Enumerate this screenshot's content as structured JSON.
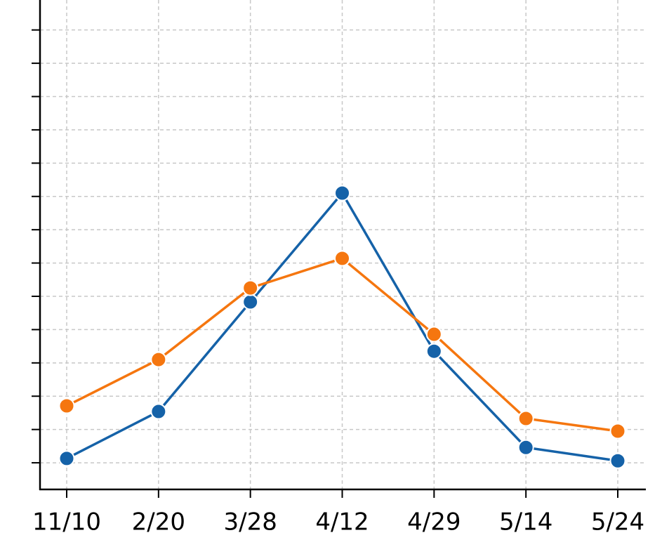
{
  "chart_data": {
    "type": "line",
    "categories": [
      "11/10",
      "2/20",
      "3/28",
      "4/12",
      "4/29",
      "5/14",
      "5/24"
    ],
    "series": [
      {
        "color": "#1562a8",
        "values": [
          0.13,
          1.54,
          4.83,
          8.1,
          3.35,
          0.46,
          0.06
        ]
      },
      {
        "color": "#f5760f",
        "values": [
          1.71,
          3.1,
          5.25,
          6.14,
          3.86,
          1.33,
          0.95
        ]
      }
    ],
    "ylim": [
      -0.8,
      13.9
    ],
    "yticks": [
      0,
      1,
      2,
      3,
      4,
      5,
      6,
      7,
      8,
      9,
      10,
      11,
      12,
      13
    ],
    "ytick_labels": false,
    "grid": true
  }
}
